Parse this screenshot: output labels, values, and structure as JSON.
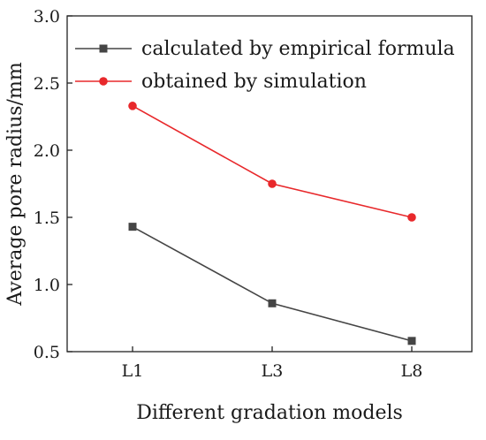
{
  "chart_data": {
    "type": "line",
    "xlabel": "Different gradation models",
    "ylabel": "Average pore radius/mm",
    "categories": [
      "L1",
      "L3",
      "L8"
    ],
    "ylim": [
      0.5,
      3.0
    ],
    "yticks": [
      "0.5",
      "1.0",
      "1.5",
      "2.0",
      "2.5",
      "3.0"
    ],
    "grid": false,
    "legend_position": "top-right",
    "series": [
      {
        "name": "calculated by empirical formula",
        "values": [
          1.43,
          0.86,
          0.58
        ],
        "color": "#454545",
        "marker": "square"
      },
      {
        "name": "obtained by simulation",
        "values": [
          2.33,
          1.75,
          1.5
        ],
        "color": "#e8282b",
        "marker": "circle"
      }
    ]
  }
}
